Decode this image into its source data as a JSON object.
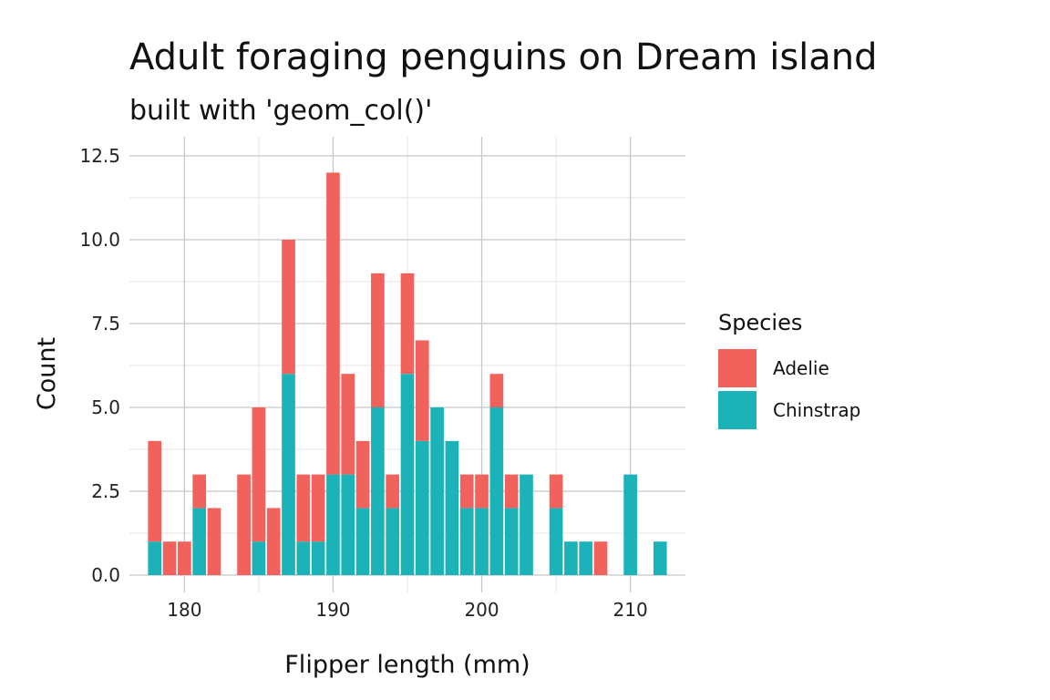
{
  "title": "Adult foraging penguins on Dream island",
  "subtitle": "built with 'geom_col()'",
  "chart_data": {
    "type": "bar",
    "stacked": true,
    "xlabel": "Flipper length (mm)",
    "ylabel": "Count",
    "xlim": [
      176.3,
      213.7
    ],
    "ylim": [
      0,
      12.5
    ],
    "x_ticks": [
      "180",
      "190",
      "200",
      "210"
    ],
    "y_ticks": [
      "0.0",
      "2.5",
      "5.0",
      "7.5",
      "10.0",
      "12.5"
    ],
    "grid": true,
    "legend": {
      "title": "Species",
      "position": "right"
    },
    "series": [
      {
        "name": "Chinstrap",
        "color": "#1CB3B8",
        "points": [
          [
            178,
            1
          ],
          [
            181,
            2
          ],
          [
            185,
            1
          ],
          [
            187,
            6
          ],
          [
            188,
            1
          ],
          [
            189,
            1
          ],
          [
            190,
            3
          ],
          [
            191,
            3
          ],
          [
            192,
            2
          ],
          [
            193,
            5
          ],
          [
            194,
            2
          ],
          [
            195,
            6
          ],
          [
            196,
            4
          ],
          [
            197,
            5
          ],
          [
            198,
            4
          ],
          [
            199,
            2
          ],
          [
            200,
            2
          ],
          [
            201,
            5
          ],
          [
            202,
            2
          ],
          [
            203,
            3
          ],
          [
            205,
            2
          ],
          [
            206,
            1
          ],
          [
            207,
            1
          ],
          [
            210,
            3
          ],
          [
            212,
            1
          ]
        ]
      },
      {
        "name": "Adelie",
        "color": "#F2625D",
        "points": [
          [
            178,
            3
          ],
          [
            179,
            1
          ],
          [
            180,
            1
          ],
          [
            181,
            1
          ],
          [
            182,
            2
          ],
          [
            184,
            3
          ],
          [
            185,
            4
          ],
          [
            186,
            2
          ],
          [
            187,
            4
          ],
          [
            188,
            2
          ],
          [
            189,
            2
          ],
          [
            190,
            9
          ],
          [
            191,
            3
          ],
          [
            192,
            2
          ],
          [
            193,
            4
          ],
          [
            194,
            1
          ],
          [
            195,
            3
          ],
          [
            196,
            3
          ],
          [
            199,
            1
          ],
          [
            200,
            1
          ],
          [
            201,
            1
          ],
          [
            202,
            1
          ],
          [
            205,
            1
          ],
          [
            208,
            1
          ]
        ]
      }
    ]
  }
}
